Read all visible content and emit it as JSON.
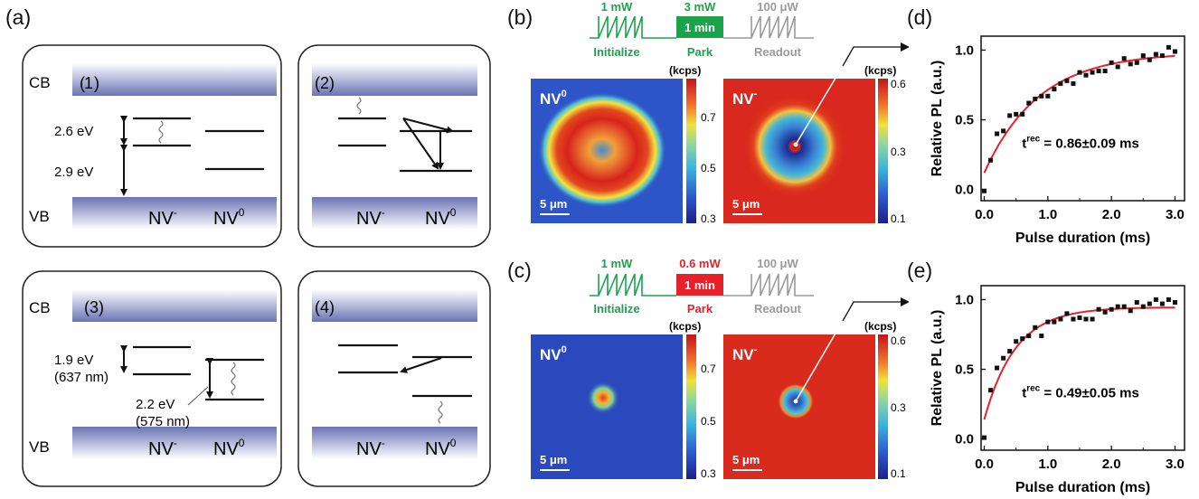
{
  "panel_labels": {
    "a": "(a)",
    "b": "(b)",
    "c": "(c)",
    "d": "(d)",
    "e": "(e)"
  },
  "band_labels": {
    "cb": "CB",
    "vb": "VB",
    "nvm": "NV",
    "nvm_sup": "-",
    "nv0": "NV",
    "nv0_sup": "0"
  },
  "schematic": [
    {
      "id": "1",
      "labels": [
        "2.6 eV",
        "2.9 eV"
      ]
    },
    {
      "id": "2",
      "labels": []
    },
    {
      "id": "3",
      "labels": [
        "1.9 eV",
        "(637 nm)",
        "2.2 eV",
        "(575 nm)"
      ]
    },
    {
      "id": "4",
      "labels": []
    }
  ],
  "pulse_b": {
    "init_power": "1 mW",
    "park_power": "3 mW",
    "park_time": "1 min",
    "readout_power": "100 μW",
    "init_label": "Initialize",
    "park_label": "Park",
    "readout_label": "Readout",
    "park_color": "#1aa34a"
  },
  "pulse_c": {
    "init_power": "1 mW",
    "park_power": "0.6 mW",
    "park_time": "1 min",
    "readout_power": "100 μW",
    "init_label": "Initialize",
    "park_label": "Park",
    "readout_label": "Readout",
    "park_color": "#e8202a"
  },
  "maps": {
    "nv0_label": "NV",
    "nv0_sup": "0",
    "nvm_label": "NV",
    "nvm_sup": "-",
    "scalebar": "5 μm",
    "unit": "(kcps)",
    "nv0_ticks": [
      "0.7",
      "0.5",
      "0.3"
    ],
    "nvm_ticks": [
      "0.6",
      "0.3",
      "0.1"
    ]
  },
  "chart_data": [
    {
      "type": "scatter",
      "panel": "d",
      "xlabel": "Pulse duration (ms)",
      "ylabel": "Relative PL (a.u.)",
      "xlim": [
        -0.05,
        3.15
      ],
      "ylim": [
        -0.08,
        1.1
      ],
      "xticks": [
        "0.0",
        "1.0",
        "2.0",
        "3.0"
      ],
      "yticks": [
        "0.0",
        "0.5",
        "1.0"
      ],
      "annotation": "t",
      "annotation_sup": "rec",
      "annotation_value": " = 0.86±0.09 ms",
      "x": [
        0.0,
        0.1,
        0.2,
        0.3,
        0.4,
        0.5,
        0.6,
        0.7,
        0.8,
        0.9,
        1.0,
        1.1,
        1.2,
        1.3,
        1.4,
        1.5,
        1.6,
        1.7,
        1.8,
        1.9,
        2.0,
        2.1,
        2.2,
        2.3,
        2.4,
        2.5,
        2.6,
        2.7,
        2.8,
        2.9,
        3.0
      ],
      "y": [
        -0.01,
        0.21,
        0.4,
        0.42,
        0.53,
        0.54,
        0.54,
        0.62,
        0.65,
        0.67,
        0.67,
        0.72,
        0.76,
        0.78,
        0.76,
        0.84,
        0.82,
        0.84,
        0.85,
        0.85,
        0.91,
        0.88,
        0.94,
        0.9,
        0.91,
        0.96,
        0.93,
        0.97,
        0.96,
        1.02,
        0.99
      ],
      "fit": {
        "y0": 0.12,
        "yinf": 0.985,
        "tau": 0.86
      }
    },
    {
      "type": "scatter",
      "panel": "e",
      "xlabel": "Pulse duration (ms)",
      "ylabel": "Relative PL (a.u.)",
      "xlim": [
        -0.05,
        3.15
      ],
      "ylim": [
        -0.08,
        1.1
      ],
      "xticks": [
        "0.0",
        "1.0",
        "2.0",
        "3.0"
      ],
      "yticks": [
        "0.0",
        "0.5",
        "1.0"
      ],
      "annotation": "t",
      "annotation_sup": "rec",
      "annotation_value": " = 0.49±0.05 ms",
      "x": [
        0.0,
        0.1,
        0.2,
        0.3,
        0.4,
        0.5,
        0.6,
        0.7,
        0.8,
        0.9,
        1.0,
        1.1,
        1.2,
        1.3,
        1.4,
        1.5,
        1.6,
        1.7,
        1.8,
        1.9,
        2.0,
        2.1,
        2.2,
        2.3,
        2.4,
        2.5,
        2.6,
        2.7,
        2.8,
        2.9,
        3.0
      ],
      "y": [
        0.01,
        0.35,
        0.51,
        0.58,
        0.63,
        0.7,
        0.72,
        0.74,
        0.8,
        0.74,
        0.84,
        0.84,
        0.86,
        0.9,
        0.86,
        0.87,
        0.86,
        0.86,
        0.93,
        0.91,
        0.93,
        0.95,
        0.95,
        0.92,
        0.98,
        0.95,
        0.97,
        1.0,
        0.97,
        1.0,
        0.98
      ],
      "fit": {
        "y0": 0.14,
        "yinf": 0.945,
        "tau": 0.49
      }
    }
  ]
}
